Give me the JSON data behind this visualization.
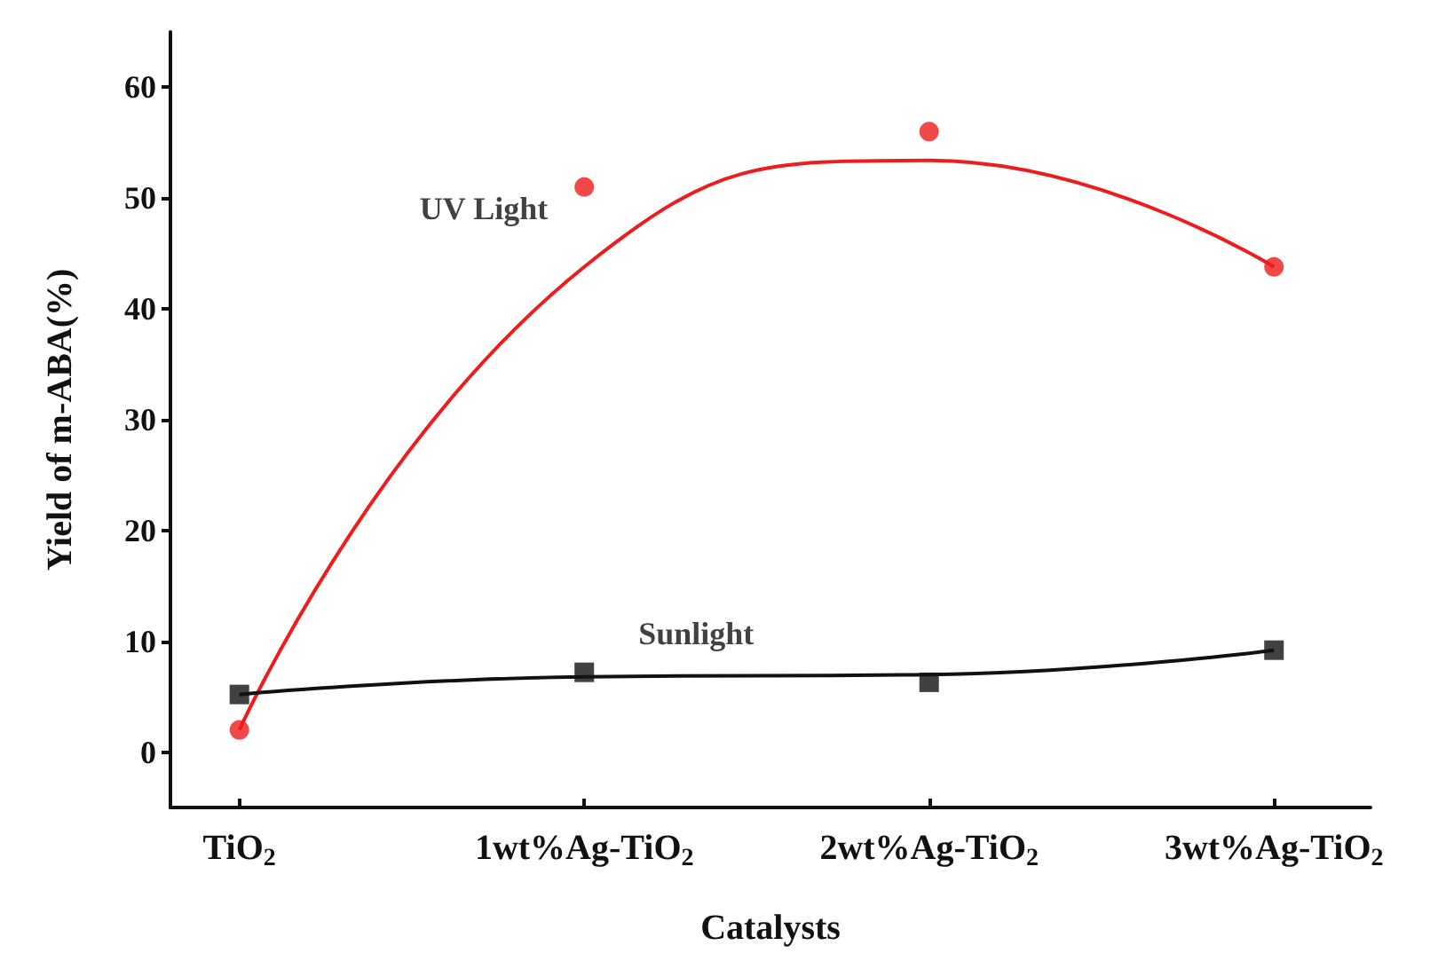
{
  "chart_data": {
    "type": "scatter",
    "xlabel": "Catalysts",
    "ylabel": "Yield of m-ABA(%)",
    "categories": [
      "TiO$_{2}$",
      "1wt%Ag-TiO$_{2}$",
      "2wt%Ag-TiO$_{2}$",
      "3wt%Ag-TiO$_{2}$"
    ],
    "ylim": [
      -5,
      65
    ],
    "yticks": [
      0,
      10,
      20,
      30,
      40,
      50,
      60
    ],
    "grid": false,
    "legend": false,
    "series": [
      {
        "name": "UV Light",
        "marker": "circle",
        "color": "#ee1c1c",
        "values": [
          2,
          51,
          56,
          43.8
        ]
      },
      {
        "type": "line",
        "marker": "none",
        "color": "#ee1c1c",
        "values": [
          2,
          43.8,
          53.4,
          43.8
        ]
      },
      {
        "name": "Sunlight",
        "marker": "square",
        "color": "#111111",
        "values": [
          5.2,
          7.2,
          6.3,
          9.2
        ]
      },
      {
        "type": "line",
        "marker": "none",
        "color": "#111111",
        "values": [
          5.2,
          6.8,
          7.0,
          9.2
        ]
      }
    ]
  }
}
